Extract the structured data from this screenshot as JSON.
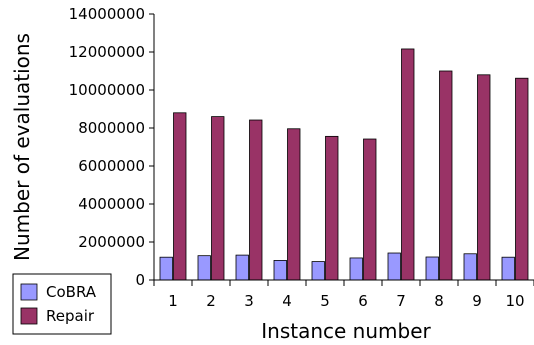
{
  "chart_data": {
    "type": "bar",
    "title": "",
    "xlabel": "Instance number",
    "ylabel": "Number of evaluations",
    "categories": [
      "1",
      "2",
      "3",
      "4",
      "5",
      "6",
      "7",
      "8",
      "9",
      "10"
    ],
    "ylim": [
      0,
      14000000
    ],
    "yticks": [
      "0",
      "2000000",
      "4000000",
      "6000000",
      "8000000",
      "10000000",
      "12000000",
      "14000000"
    ],
    "grid": false,
    "legend_position": "bottom-left",
    "series": [
      {
        "name": "CoBRA",
        "color": "#9999ff",
        "values": [
          1200000,
          1280000,
          1310000,
          1030000,
          970000,
          1160000,
          1420000,
          1210000,
          1380000,
          1200000
        ]
      },
      {
        "name": "Repair",
        "color": "#993366",
        "values": [
          8800000,
          8600000,
          8420000,
          7960000,
          7560000,
          7420000,
          12160000,
          11000000,
          10800000,
          10620000
        ]
      }
    ]
  }
}
